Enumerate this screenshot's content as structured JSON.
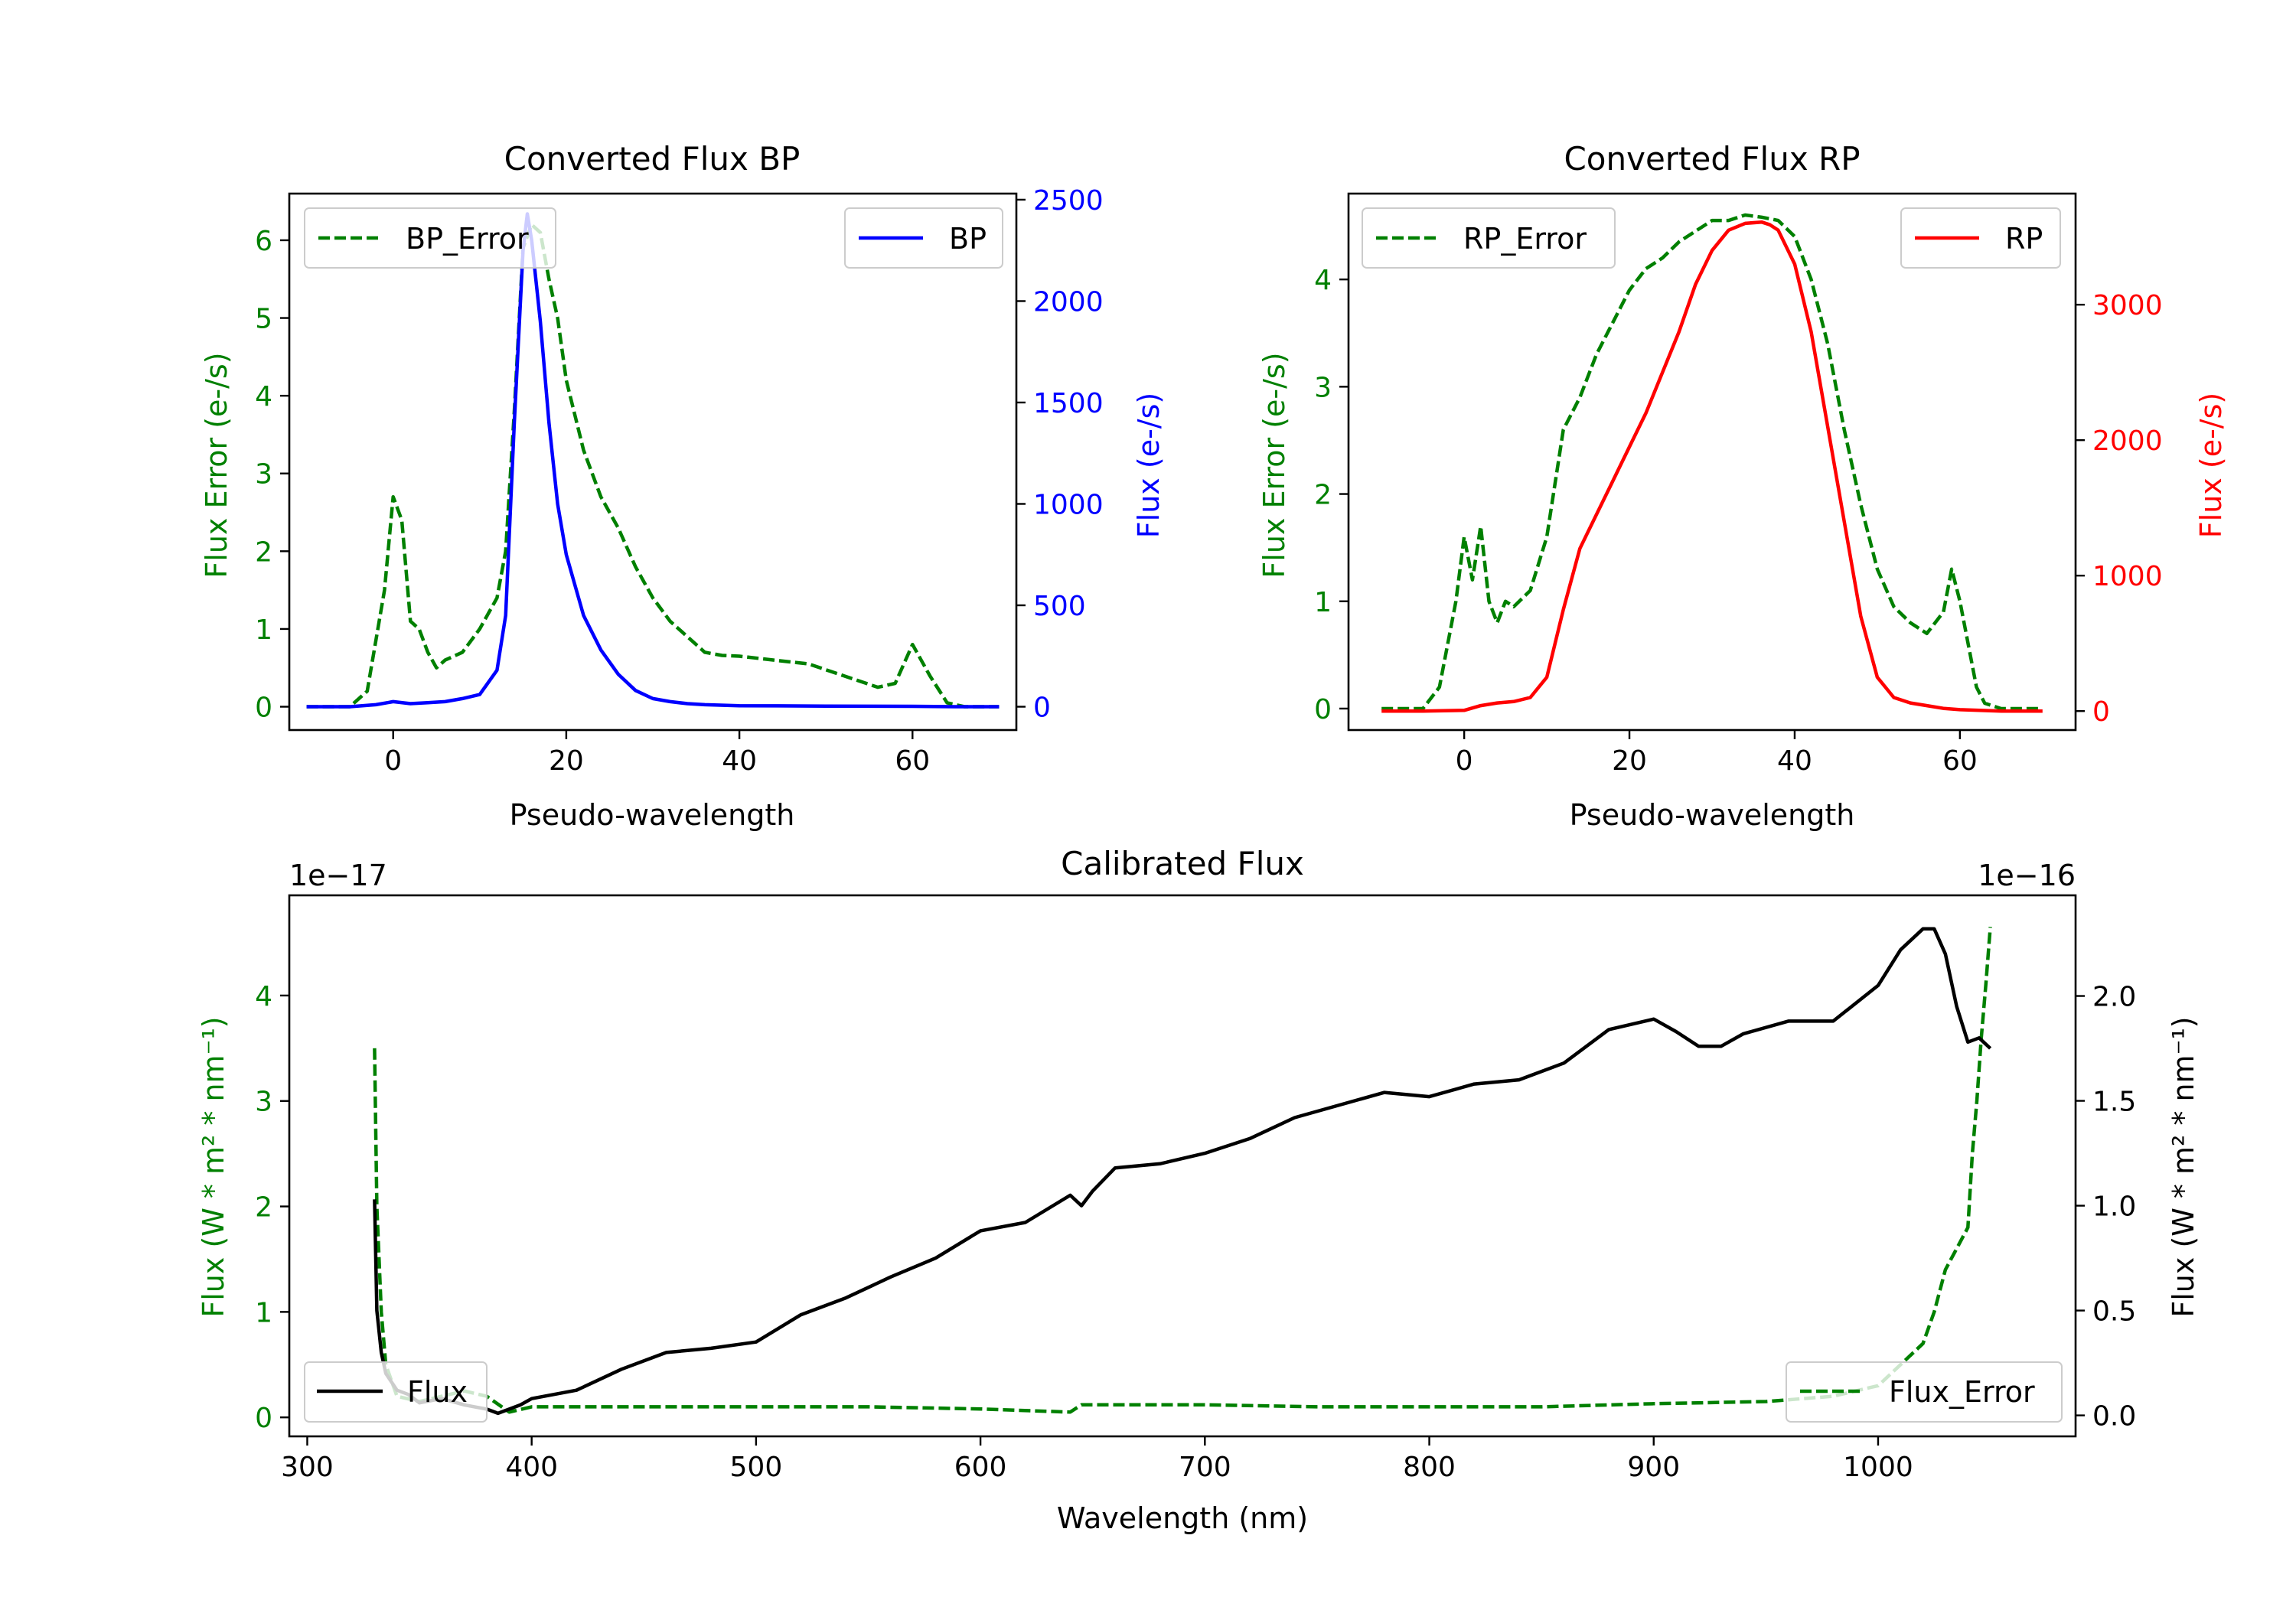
{
  "chart_data": [
    {
      "id": "bp",
      "type": "line",
      "title": "Converted Flux BP",
      "xlabel": "Pseudo-wavelength",
      "ylabel_left": "Flux Error (e-/s)",
      "ylabel_right": "Flux (e-/s)",
      "xlim": [
        -12,
        72
      ],
      "ylim_left": [
        -0.3,
        6.6
      ],
      "ylim_right": [
        -115,
        2530
      ],
      "xticks": [
        0,
        20,
        40,
        60
      ],
      "yticks_left": [
        0,
        1,
        2,
        3,
        4,
        5,
        6
      ],
      "yticks_right": [
        0,
        500,
        1000,
        1500,
        2000,
        2500
      ],
      "colors": {
        "left": "#008000",
        "right": "#0000ff"
      },
      "series": [
        {
          "name": "BP_Error",
          "axis": "left",
          "style": "dashed",
          "color": "#008000",
          "x": [
            -10,
            -5,
            -3,
            -1,
            0,
            1,
            2,
            3,
            4,
            5,
            6,
            8,
            10,
            12,
            13,
            14,
            15,
            16,
            17,
            18,
            19,
            20,
            22,
            24,
            26,
            28,
            30,
            32,
            34,
            36,
            38,
            40,
            44,
            48,
            52,
            56,
            58,
            60,
            62,
            64,
            66,
            70
          ],
          "y": [
            0,
            0,
            0.2,
            1.5,
            2.7,
            2.4,
            1.1,
            1.0,
            0.7,
            0.5,
            0.6,
            0.7,
            1.0,
            1.4,
            2.0,
            3.8,
            5.9,
            6.2,
            6.1,
            5.5,
            5.0,
            4.2,
            3.3,
            2.7,
            2.3,
            1.8,
            1.4,
            1.1,
            0.9,
            0.7,
            0.66,
            0.65,
            0.6,
            0.55,
            0.4,
            0.25,
            0.3,
            0.8,
            0.4,
            0.05,
            0,
            0
          ]
        },
        {
          "name": "BP",
          "axis": "right",
          "style": "solid",
          "color": "#0000ff",
          "x": [
            -10,
            -5,
            -2,
            0,
            2,
            4,
            6,
            8,
            10,
            12,
            13,
            14,
            15,
            15.5,
            16,
            17,
            18,
            19,
            20,
            22,
            24,
            26,
            28,
            30,
            32,
            34,
            36,
            40,
            50,
            60,
            65,
            70
          ],
          "y": [
            0,
            0,
            10,
            25,
            15,
            20,
            25,
            40,
            60,
            180,
            450,
            1400,
            2250,
            2430,
            2300,
            1900,
            1400,
            1000,
            750,
            450,
            280,
            160,
            80,
            40,
            25,
            15,
            10,
            5,
            3,
            2,
            0,
            0
          ]
        }
      ],
      "legend": [
        {
          "label": "BP_Error",
          "position": "upper-left"
        },
        {
          "label": "BP",
          "position": "upper-right"
        }
      ]
    },
    {
      "id": "rp",
      "type": "line",
      "title": "Converted Flux RP",
      "xlabel": "Pseudo-wavelength",
      "ylabel_left": "Flux Error (e-/s)",
      "ylabel_right": "Flux (e-/s)",
      "xlim": [
        -14,
        74
      ],
      "ylim_left": [
        -0.2,
        4.8
      ],
      "ylim_right": [
        -140,
        3820
      ],
      "xticks": [
        0,
        20,
        40,
        60
      ],
      "yticks_left": [
        0,
        1,
        2,
        3,
        4
      ],
      "yticks_right": [
        0,
        1000,
        2000,
        3000
      ],
      "colors": {
        "left": "#008000",
        "right": "#ff0000"
      },
      "series": [
        {
          "name": "RP_Error",
          "axis": "left",
          "style": "dashed",
          "color": "#008000",
          "x": [
            -10,
            -5,
            -3,
            -1,
            0,
            1,
            2,
            3,
            4,
            5,
            6,
            8,
            10,
            12,
            14,
            16,
            18,
            20,
            22,
            24,
            26,
            28,
            30,
            32,
            34,
            36,
            38,
            40,
            42,
            44,
            46,
            48,
            50,
            52,
            54,
            56,
            57,
            58,
            59,
            60,
            61,
            62,
            63,
            65,
            70
          ],
          "y": [
            0,
            0,
            0.2,
            1.0,
            1.6,
            1.2,
            1.7,
            1.0,
            0.8,
            1.0,
            0.95,
            1.1,
            1.6,
            2.6,
            2.9,
            3.3,
            3.6,
            3.9,
            4.1,
            4.2,
            4.35,
            4.45,
            4.55,
            4.55,
            4.6,
            4.58,
            4.55,
            4.4,
            4.0,
            3.4,
            2.6,
            1.9,
            1.3,
            0.95,
            0.8,
            0.7,
            0.8,
            0.9,
            1.3,
            1.0,
            0.6,
            0.2,
            0.05,
            0,
            0
          ]
        },
        {
          "name": "RP",
          "axis": "right",
          "style": "solid",
          "color": "#ff0000",
          "x": [
            -10,
            -5,
            0,
            2,
            4,
            6,
            8,
            10,
            12,
            14,
            16,
            18,
            20,
            22,
            24,
            26,
            28,
            30,
            32,
            34,
            36,
            37,
            38,
            40,
            42,
            44,
            46,
            48,
            50,
            52,
            54,
            56,
            58,
            60,
            65,
            70
          ],
          "y": [
            0,
            0,
            5,
            40,
            60,
            70,
            100,
            250,
            750,
            1200,
            1450,
            1700,
            1950,
            2200,
            2500,
            2800,
            3150,
            3400,
            3550,
            3600,
            3610,
            3590,
            3550,
            3300,
            2800,
            2100,
            1400,
            700,
            250,
            100,
            60,
            40,
            20,
            10,
            0,
            0
          ]
        }
      ],
      "legend": [
        {
          "label": "RP_Error",
          "position": "upper-left"
        },
        {
          "label": "RP",
          "position": "upper-right"
        }
      ]
    },
    {
      "id": "cal",
      "type": "line",
      "title": "Calibrated Flux",
      "xlabel": "Wavelength (nm)",
      "ylabel_left": "Flux (W * m$^2$ * nm$^{-1}$)",
      "ylabel_left_display": "Flux (W * m² * nm⁻¹)",
      "ylabel_right_display": "Flux (W * m² * nm⁻¹)",
      "xlim": [
        292,
        1088
      ],
      "ylim_left": [
        -0.18,
        4.95
      ],
      "ylim_right": [
        -0.1,
        2.48
      ],
      "offset_left": "1e−17",
      "offset_right": "1e−16",
      "xticks": [
        300,
        400,
        500,
        600,
        700,
        800,
        900,
        1000
      ],
      "yticks_left": [
        0,
        1,
        2,
        3,
        4
      ],
      "yticks_right": [
        "0.0",
        "0.5",
        "1.0",
        "1.5",
        "2.0"
      ],
      "yticks_right_values": [
        0,
        0.5,
        1.0,
        1.5,
        2.0
      ],
      "colors": {
        "left": "#008000",
        "right": "#000000"
      },
      "series": [
        {
          "name": "Flux_Error",
          "axis": "left",
          "style": "dashed",
          "color": "#008000",
          "x": [
            330,
            331,
            333,
            335,
            340,
            350,
            360,
            370,
            380,
            390,
            400,
            420,
            450,
            500,
            550,
            600,
            640,
            645,
            700,
            750,
            800,
            850,
            900,
            950,
            980,
            1000,
            1010,
            1020,
            1025,
            1030,
            1035,
            1040,
            1042,
            1044,
            1046,
            1048,
            1050
          ],
          "y": [
            3.5,
            2.0,
            1.0,
            0.5,
            0.2,
            0.15,
            0.2,
            0.25,
            0.2,
            0.05,
            0.1,
            0.1,
            0.1,
            0.1,
            0.1,
            0.08,
            0.05,
            0.12,
            0.12,
            0.1,
            0.1,
            0.1,
            0.13,
            0.15,
            0.2,
            0.3,
            0.5,
            0.7,
            1.0,
            1.4,
            1.6,
            1.8,
            2.5,
            3.0,
            3.6,
            4.1,
            4.65
          ]
        },
        {
          "name": "Flux",
          "axis": "right",
          "style": "solid",
          "color": "#000000",
          "x": [
            330,
            331,
            333,
            335,
            340,
            345,
            350,
            360,
            370,
            380,
            385,
            390,
            395,
            400,
            420,
            440,
            460,
            480,
            500,
            520,
            540,
            560,
            580,
            600,
            620,
            640,
            645,
            650,
            660,
            680,
            700,
            720,
            740,
            760,
            780,
            800,
            820,
            840,
            860,
            880,
            900,
            910,
            920,
            930,
            940,
            960,
            980,
            1000,
            1010,
            1020,
            1025,
            1030,
            1035,
            1040,
            1045,
            1050
          ],
          "y": [
            1.03,
            0.5,
            0.3,
            0.2,
            0.12,
            0.1,
            0.06,
            0.08,
            0.05,
            0.03,
            0.01,
            0.03,
            0.05,
            0.08,
            0.12,
            0.22,
            0.3,
            0.32,
            0.35,
            0.48,
            0.56,
            0.66,
            0.75,
            0.88,
            0.92,
            1.05,
            1.0,
            1.07,
            1.18,
            1.2,
            1.25,
            1.32,
            1.42,
            1.48,
            1.54,
            1.52,
            1.58,
            1.6,
            1.68,
            1.84,
            1.89,
            1.83,
            1.76,
            1.76,
            1.82,
            1.88,
            1.88,
            2.05,
            2.22,
            2.32,
            2.32,
            2.2,
            1.95,
            1.78,
            1.8,
            1.75
          ]
        }
      ],
      "legend": [
        {
          "label": "Flux",
          "position": "lower-left"
        },
        {
          "label": "Flux_Error",
          "position": "lower-right"
        }
      ]
    }
  ]
}
